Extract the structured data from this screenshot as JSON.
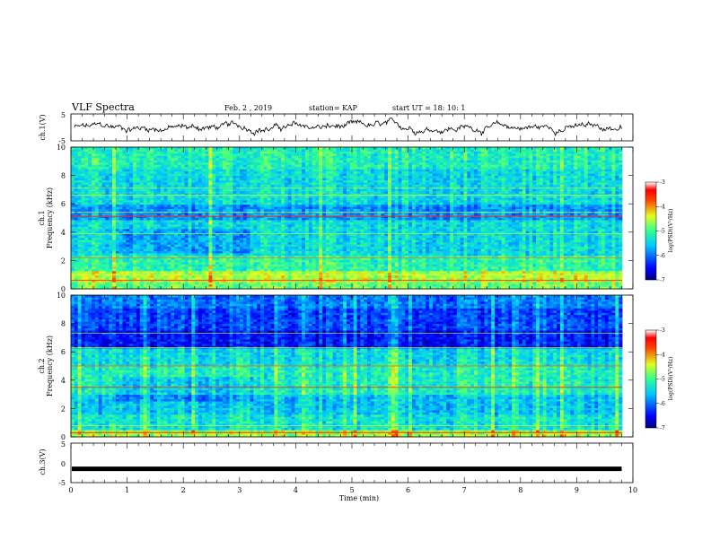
{
  "header": {
    "title": "VLF Spectra",
    "date": "Feb. 2 , 2019",
    "station": "station= KAP",
    "start": "start  UT =   18: 10: 1"
  },
  "chart_data": [
    {
      "type": "line",
      "ylabel": "ch.1(V)",
      "ylim": [
        -5,
        5
      ],
      "yticks": [
        "5",
        "-5"
      ],
      "xlim": [
        0,
        10
      ],
      "note": "noisy waveform centered near 0 V, amplitude about +/-3 V"
    },
    {
      "type": "heatmap",
      "ylabel_line1": "ch.1",
      "ylabel_line2": "Frequency (kHz)",
      "ylim": [
        0,
        10
      ],
      "yticks": [
        "0",
        "2",
        "4",
        "6",
        "8",
        "10"
      ],
      "xlim": [
        0,
        10
      ],
      "colorbar": {
        "label": "log(PSD)(V²/Hz)",
        "range": [
          -7,
          -3
        ],
        "ticks": [
          "-3",
          "-4",
          "-5",
          "-6",
          "-7"
        ]
      }
    },
    {
      "type": "heatmap",
      "ylabel_line1": "ch.2",
      "ylabel_line2": "Frequency (kHz)",
      "ylim": [
        0,
        10
      ],
      "yticks": [
        "0",
        "2",
        "4",
        "6",
        "8",
        "10"
      ],
      "xlim": [
        0,
        10
      ],
      "colorbar": {
        "label": "log(PSD)(V²/Hz)",
        "range": [
          -7,
          -3
        ],
        "ticks": [
          "-3",
          "-4",
          "-5",
          "-6",
          "-7"
        ]
      }
    },
    {
      "type": "line",
      "ylabel": "ch.3(V)",
      "ylim": [
        -5,
        5
      ],
      "yticks": [
        "5",
        "0",
        "-5"
      ],
      "xlim": [
        0,
        10
      ],
      "note": "flat thick trace at about -1.5 V from 0 to 9.8 min"
    }
  ],
  "xaxis": {
    "label": "Time  (min)",
    "ticks": [
      "0",
      "1",
      "2",
      "3",
      "4",
      "5",
      "6",
      "7",
      "8",
      "9",
      "10"
    ]
  }
}
